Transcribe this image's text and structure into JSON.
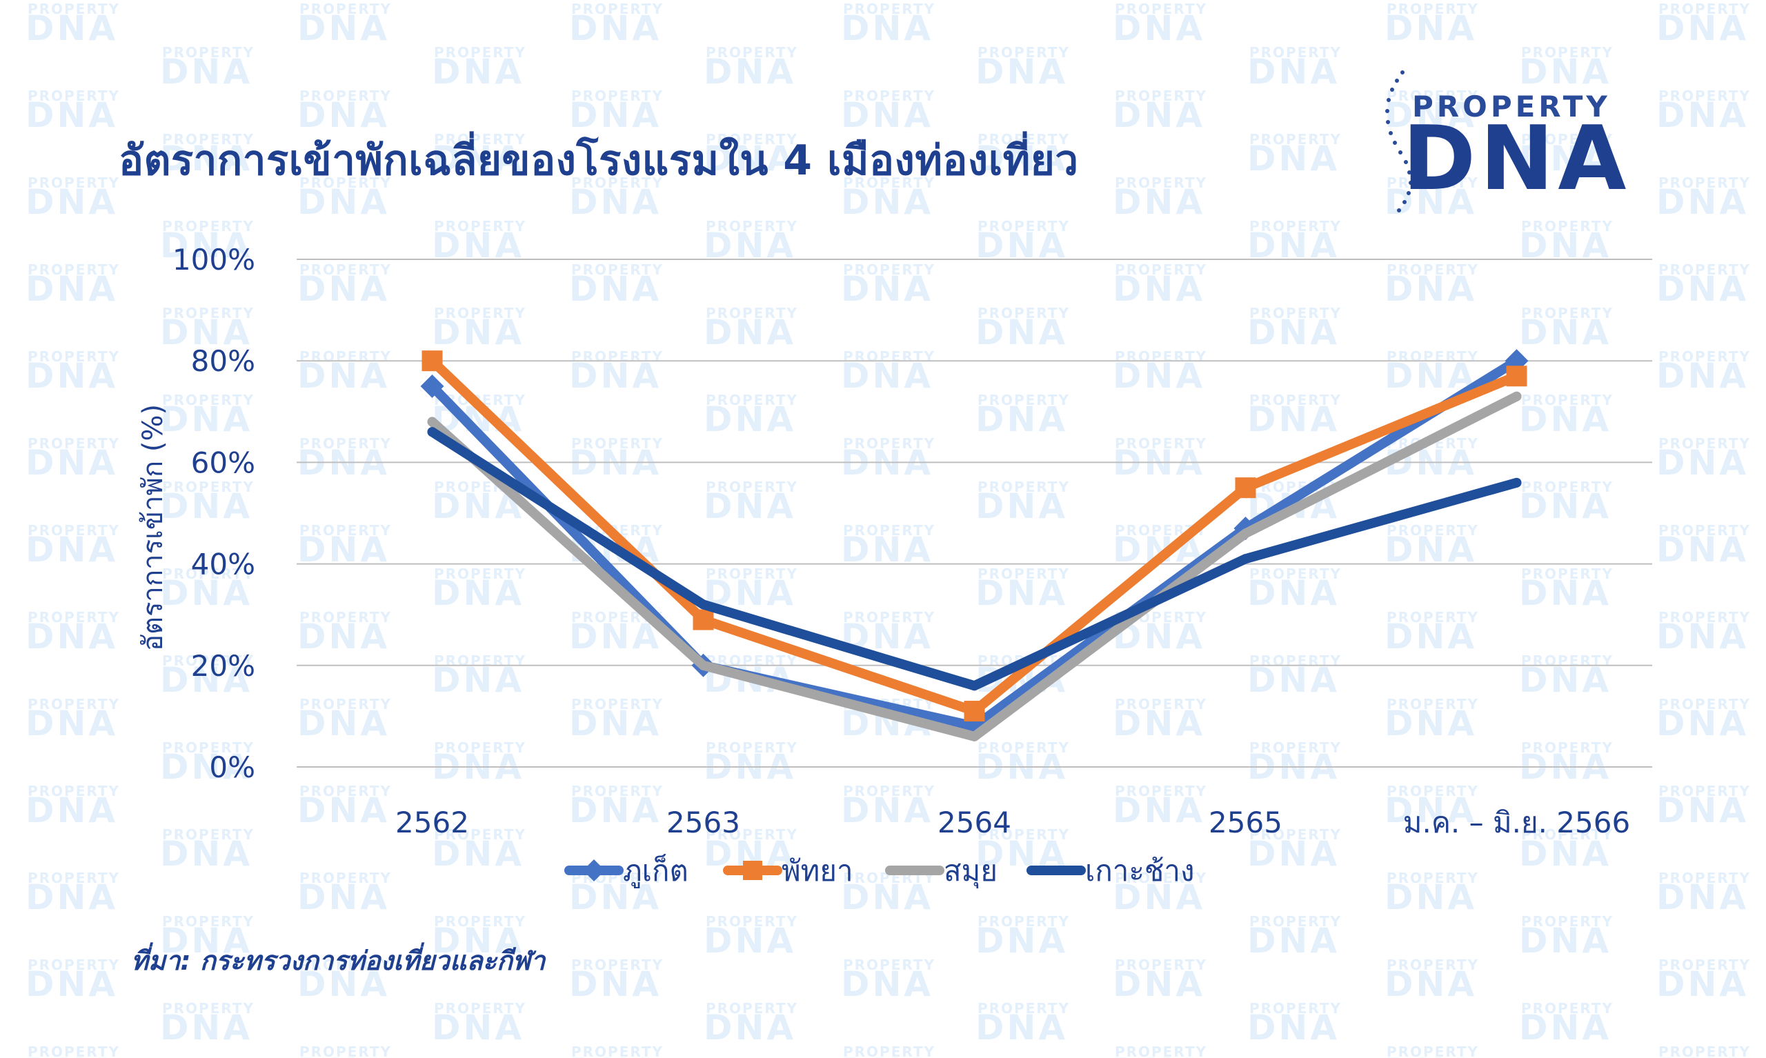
{
  "title": "อัตราการเข้าพักเฉลี่ยของโรงแรมใน 4 เมืองท่องเที่ยว",
  "logo": {
    "top": "PROPERTY",
    "main": "DNA"
  },
  "watermark": {
    "top": "PROPERTY",
    "main": "DNA"
  },
  "source": "ที่มา:  กระทรวงการท่องเที่ยวและกีฬา",
  "colors": {
    "title": "#1f3f8f",
    "phuket": "#4472c4",
    "pattaya": "#ed7d31",
    "samui": "#a5a5a5",
    "kohchang": "#1f4e9a",
    "grid": "#bfbfbf",
    "watermark": "#e3f0fc"
  },
  "chart_data": {
    "type": "line",
    "title": "อัตราการเข้าพักเฉลี่ยของโรงแรมใน 4 เมืองท่องเที่ยว",
    "xlabel": "",
    "ylabel": "อัตราการเข้าพัก (%)",
    "ylim": [
      0,
      100
    ],
    "yticks": [
      "0%",
      "20%",
      "40%",
      "60%",
      "80%",
      "100%"
    ],
    "categories": [
      "2562",
      "2563",
      "2564",
      "2565",
      "ม.ค. – มิ.ย. 2566"
    ],
    "grid": true,
    "legend_position": "bottom",
    "series": [
      {
        "name": "ภูเก็ต",
        "color": "#4472c4",
        "marker": "diamond",
        "values": [
          75,
          20,
          8,
          47,
          80
        ]
      },
      {
        "name": "พัทยา",
        "color": "#ed7d31",
        "marker": "square",
        "values": [
          80,
          29,
          11,
          55,
          77
        ]
      },
      {
        "name": "สมุย",
        "color": "#a5a5a5",
        "marker": "none",
        "values": [
          68,
          20,
          6,
          46,
          73
        ]
      },
      {
        "name": "เกาะช้าง",
        "color": "#1f4e9a",
        "marker": "none",
        "values": [
          66,
          32,
          16,
          41,
          56
        ]
      }
    ]
  }
}
